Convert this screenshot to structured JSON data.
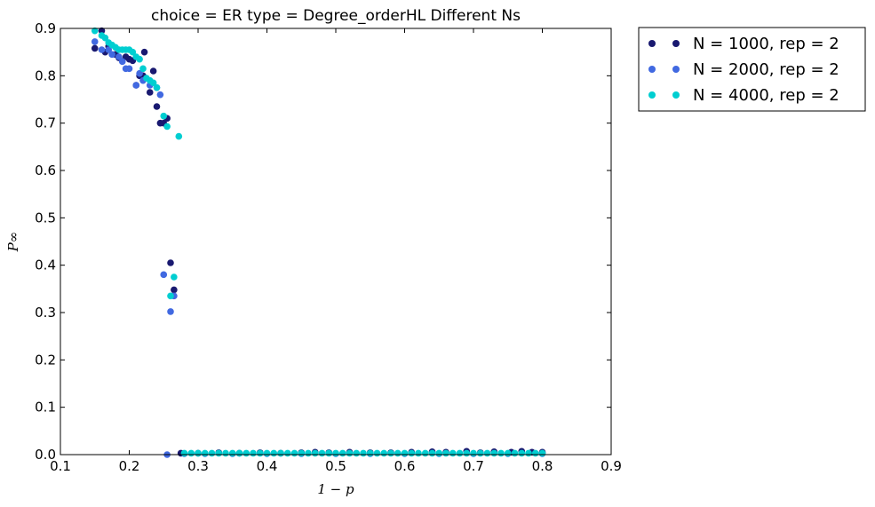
{
  "chart_data": {
    "type": "scatter",
    "title": "choice = ER type = Degree_orderHL Different Ns",
    "xlabel": "1 − p",
    "ylabel": "P∞",
    "xlim": [
      0.1,
      0.9
    ],
    "ylim": [
      0.0,
      0.9
    ],
    "xticks": [
      "0.1",
      "0.2",
      "0.3",
      "0.4",
      "0.5",
      "0.6",
      "0.7",
      "0.8",
      "0.9"
    ],
    "yticks": [
      "0.0",
      "0.1",
      "0.2",
      "0.3",
      "0.4",
      "0.5",
      "0.6",
      "0.7",
      "0.8",
      "0.9"
    ],
    "grid": false,
    "legend_position": "outside-top-right",
    "series": [
      {
        "name": "N = 1000, rep = 2",
        "color": "#191970",
        "points": [
          [
            0.15,
            0.858
          ],
          [
            0.16,
            0.895
          ],
          [
            0.165,
            0.85
          ],
          [
            0.17,
            0.862
          ],
          [
            0.18,
            0.845
          ],
          [
            0.185,
            0.838
          ],
          [
            0.195,
            0.84
          ],
          [
            0.2,
            0.835
          ],
          [
            0.205,
            0.832
          ],
          [
            0.21,
            0.78
          ],
          [
            0.215,
            0.8
          ],
          [
            0.22,
            0.8
          ],
          [
            0.222,
            0.85
          ],
          [
            0.23,
            0.765
          ],
          [
            0.235,
            0.81
          ],
          [
            0.24,
            0.735
          ],
          [
            0.245,
            0.7
          ],
          [
            0.25,
            0.7
          ],
          [
            0.255,
            0.71
          ],
          [
            0.26,
            0.405
          ],
          [
            0.265,
            0.348
          ],
          [
            0.275,
            0.003
          ],
          [
            0.3,
            0.003
          ],
          [
            0.33,
            0.004
          ],
          [
            0.36,
            0.003
          ],
          [
            0.39,
            0.004
          ],
          [
            0.42,
            0.003
          ],
          [
            0.45,
            0.004
          ],
          [
            0.47,
            0.005
          ],
          [
            0.49,
            0.004
          ],
          [
            0.52,
            0.005
          ],
          [
            0.55,
            0.004
          ],
          [
            0.58,
            0.004
          ],
          [
            0.61,
            0.005
          ],
          [
            0.64,
            0.006
          ],
          [
            0.66,
            0.005
          ],
          [
            0.69,
            0.007
          ],
          [
            0.71,
            0.004
          ],
          [
            0.73,
            0.006
          ],
          [
            0.755,
            0.005
          ],
          [
            0.77,
            0.007
          ],
          [
            0.785,
            0.005
          ],
          [
            0.8,
            0.005
          ]
        ]
      },
      {
        "name": "N = 2000, rep = 2",
        "color": "#4169e1",
        "points": [
          [
            0.15,
            0.872
          ],
          [
            0.16,
            0.855
          ],
          [
            0.17,
            0.855
          ],
          [
            0.175,
            0.845
          ],
          [
            0.185,
            0.84
          ],
          [
            0.19,
            0.83
          ],
          [
            0.195,
            0.815
          ],
          [
            0.2,
            0.815
          ],
          [
            0.21,
            0.78
          ],
          [
            0.215,
            0.805
          ],
          [
            0.22,
            0.79
          ],
          [
            0.23,
            0.78
          ],
          [
            0.24,
            0.775
          ],
          [
            0.245,
            0.76
          ],
          [
            0.25,
            0.38
          ],
          [
            0.255,
            0.0
          ],
          [
            0.26,
            0.302
          ],
          [
            0.265,
            0.335
          ],
          [
            0.28,
            0.002
          ],
          [
            0.31,
            0.002
          ],
          [
            0.35,
            0.002
          ],
          [
            0.4,
            0.002
          ],
          [
            0.45,
            0.002
          ],
          [
            0.5,
            0.002
          ],
          [
            0.55,
            0.002
          ],
          [
            0.6,
            0.002
          ],
          [
            0.65,
            0.002
          ],
          [
            0.7,
            0.002
          ],
          [
            0.75,
            0.002
          ],
          [
            0.8,
            0.002
          ]
        ]
      },
      {
        "name": "N = 4000, rep = 2",
        "color": "#00ced1",
        "points": [
          [
            0.15,
            0.895
          ],
          [
            0.16,
            0.885
          ],
          [
            0.165,
            0.88
          ],
          [
            0.17,
            0.87
          ],
          [
            0.175,
            0.865
          ],
          [
            0.18,
            0.86
          ],
          [
            0.185,
            0.855
          ],
          [
            0.19,
            0.855
          ],
          [
            0.195,
            0.855
          ],
          [
            0.2,
            0.855
          ],
          [
            0.205,
            0.85
          ],
          [
            0.21,
            0.84
          ],
          [
            0.215,
            0.835
          ],
          [
            0.22,
            0.815
          ],
          [
            0.225,
            0.795
          ],
          [
            0.23,
            0.79
          ],
          [
            0.235,
            0.785
          ],
          [
            0.24,
            0.775
          ],
          [
            0.25,
            0.715
          ],
          [
            0.255,
            0.693
          ],
          [
            0.26,
            0.335
          ],
          [
            0.265,
            0.375
          ],
          [
            0.272,
            0.672
          ],
          [
            0.28,
            0.003
          ],
          [
            0.29,
            0.003
          ],
          [
            0.3,
            0.003
          ],
          [
            0.31,
            0.003
          ],
          [
            0.32,
            0.003
          ],
          [
            0.33,
            0.003
          ],
          [
            0.34,
            0.003
          ],
          [
            0.35,
            0.003
          ],
          [
            0.36,
            0.003
          ],
          [
            0.37,
            0.003
          ],
          [
            0.38,
            0.003
          ],
          [
            0.39,
            0.003
          ],
          [
            0.4,
            0.003
          ],
          [
            0.41,
            0.003
          ],
          [
            0.42,
            0.003
          ],
          [
            0.43,
            0.003
          ],
          [
            0.44,
            0.003
          ],
          [
            0.45,
            0.003
          ],
          [
            0.46,
            0.003
          ],
          [
            0.47,
            0.003
          ],
          [
            0.48,
            0.003
          ],
          [
            0.49,
            0.003
          ],
          [
            0.5,
            0.003
          ],
          [
            0.51,
            0.003
          ],
          [
            0.52,
            0.003
          ],
          [
            0.53,
            0.003
          ],
          [
            0.54,
            0.003
          ],
          [
            0.55,
            0.003
          ],
          [
            0.56,
            0.003
          ],
          [
            0.57,
            0.003
          ],
          [
            0.58,
            0.003
          ],
          [
            0.59,
            0.003
          ],
          [
            0.6,
            0.003
          ],
          [
            0.61,
            0.003
          ],
          [
            0.62,
            0.003
          ],
          [
            0.63,
            0.003
          ],
          [
            0.64,
            0.003
          ],
          [
            0.65,
            0.003
          ],
          [
            0.66,
            0.003
          ],
          [
            0.67,
            0.003
          ],
          [
            0.68,
            0.003
          ],
          [
            0.69,
            0.003
          ],
          [
            0.7,
            0.003
          ],
          [
            0.71,
            0.003
          ],
          [
            0.72,
            0.003
          ],
          [
            0.73,
            0.003
          ],
          [
            0.74,
            0.003
          ],
          [
            0.75,
            0.003
          ],
          [
            0.76,
            0.003
          ],
          [
            0.77,
            0.003
          ],
          [
            0.78,
            0.003
          ],
          [
            0.79,
            0.003
          ],
          [
            0.8,
            0.003
          ]
        ]
      }
    ]
  }
}
